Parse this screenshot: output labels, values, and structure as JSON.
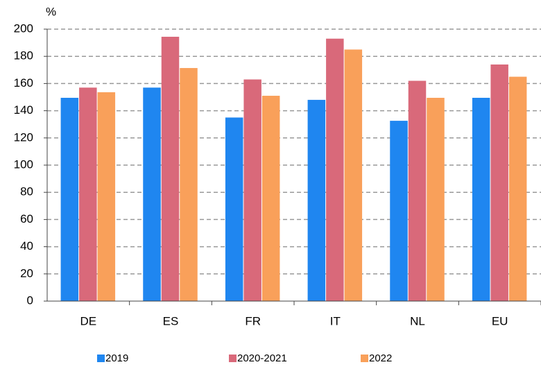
{
  "chart_data": {
    "type": "bar",
    "y_label": "%",
    "categories": [
      "DE",
      "ES",
      "FR",
      "IT",
      "NL",
      "EU"
    ],
    "series": [
      {
        "name": "2019",
        "color": "#1f86f0",
        "values": [
          149.5,
          157,
          135,
          148,
          132.6,
          149.5
        ]
      },
      {
        "name": "2020-2021",
        "color": "#d9697a",
        "values": [
          157,
          194.4,
          163,
          193,
          162,
          174
        ]
      },
      {
        "name": "2022",
        "color": "#f9a05a",
        "values": [
          153.6,
          171.4,
          151,
          185,
          149.5,
          165
        ]
      }
    ],
    "ylim": [
      0,
      200
    ],
    "yticks": [
      0,
      20,
      40,
      60,
      80,
      100,
      120,
      140,
      160,
      180,
      200
    ],
    "grid": true
  }
}
